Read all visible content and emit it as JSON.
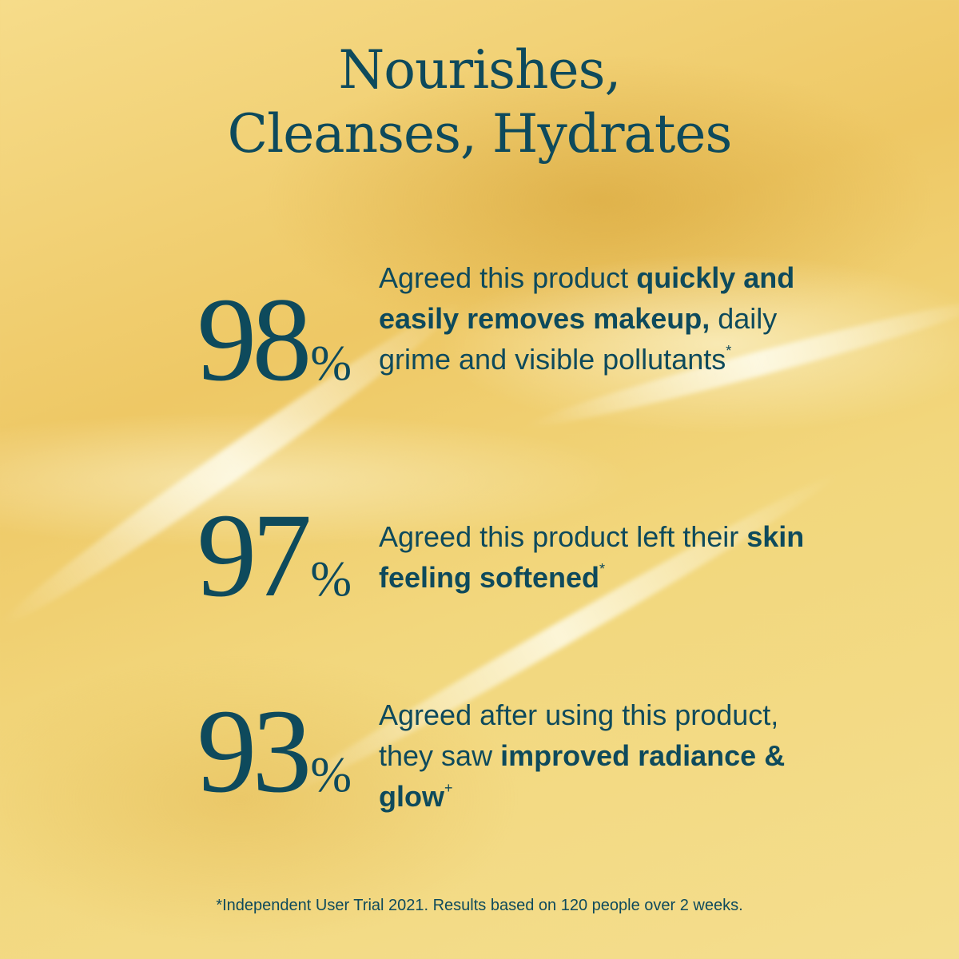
{
  "title": {
    "line1": "Nourishes,",
    "line2": "Cleanses, Hydrates"
  },
  "stats": [
    {
      "value": "98",
      "unit": "%",
      "segments": [
        {
          "text": "Agreed this product ",
          "bold": false
        },
        {
          "text": "quickly and easily removes makeup,",
          "bold": true
        },
        {
          "text": " daily grime and visible pollutants",
          "bold": false
        }
      ],
      "mark": "*"
    },
    {
      "value": "97",
      "unit": "%",
      "segments": [
        {
          "text": "Agreed this product left their ",
          "bold": false
        },
        {
          "text": "skin feeling softened",
          "bold": true
        }
      ],
      "mark": "*"
    },
    {
      "value": "93",
      "unit": "%",
      "segments": [
        {
          "text": " Agreed after using this product, they saw ",
          "bold": false
        },
        {
          "text": "improved radiance & glow",
          "bold": true
        }
      ],
      "mark": "+"
    }
  ],
  "footnote": "*Independent User Trial 2021. Results based on 120 people over 2 weeks.",
  "colors": {
    "text": "#0e4a5c",
    "background": "#f2d77d"
  }
}
